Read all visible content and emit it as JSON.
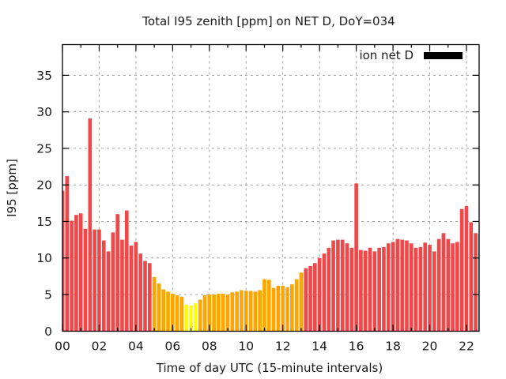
{
  "chart_data": {
    "type": "bar",
    "title": "Total I95 zenith [ppm] on NET D, DoY=034",
    "xlabel": "Time of day UTC (15-minute intervals)",
    "ylabel": "I95 [ppm]",
    "xlim": [
      0,
      22.69
    ],
    "ylim": [
      0,
      39.2
    ],
    "grid": true,
    "x_interval_hours": 0.25,
    "x_ticks": [
      {
        "value": 0,
        "label": "00"
      },
      {
        "value": 2,
        "label": "02"
      },
      {
        "value": 4,
        "label": "04"
      },
      {
        "value": 6,
        "label": "06"
      },
      {
        "value": 8,
        "label": "08"
      },
      {
        "value": 10,
        "label": "10"
      },
      {
        "value": 12,
        "label": "12"
      },
      {
        "value": 14,
        "label": "14"
      },
      {
        "value": 16,
        "label": "16"
      },
      {
        "value": 18,
        "label": "18"
      },
      {
        "value": 20,
        "label": "20"
      },
      {
        "value": 22,
        "label": "22"
      }
    ],
    "y_ticks": [
      {
        "value": 0,
        "label": "0"
      },
      {
        "value": 5,
        "label": "5"
      },
      {
        "value": 10,
        "label": "10"
      },
      {
        "value": 15,
        "label": "15"
      },
      {
        "value": 20,
        "label": "20"
      },
      {
        "value": 25,
        "label": "25"
      },
      {
        "value": 30,
        "label": "30"
      },
      {
        "value": 35,
        "label": "35"
      }
    ],
    "legend": {
      "label": "ion net D",
      "color": "#000000",
      "position": "top-right"
    },
    "color_thresholds": {
      "yellow_below": 4.0,
      "red_at_or_above": 8.5,
      "colors": {
        "yellow": "#ffff00",
        "orange": "#ffa500",
        "red": "#f04848"
      }
    },
    "series": [
      {
        "name": "ion net D",
        "values": [
          19.2,
          21.2,
          15.1,
          15.9,
          16.1,
          14.0,
          29.1,
          13.9,
          13.9,
          12.4,
          10.9,
          13.5,
          16.0,
          12.5,
          16.5,
          11.7,
          12.2,
          10.6,
          9.6,
          9.3,
          7.4,
          6.5,
          5.7,
          5.4,
          5.1,
          4.9,
          4.7,
          3.6,
          3.5,
          3.8,
          4.3,
          4.9,
          5.0,
          5.0,
          5.1,
          5.1,
          5.0,
          5.3,
          5.4,
          5.6,
          5.5,
          5.5,
          5.4,
          5.6,
          7.1,
          7.0,
          5.9,
          6.2,
          6.2,
          6.0,
          6.4,
          7.1,
          8.0,
          8.6,
          8.9,
          9.3,
          10.0,
          10.6,
          11.4,
          12.4,
          12.5,
          12.5,
          12.0,
          11.4,
          20.2,
          11.1,
          11.0,
          11.4,
          10.9,
          11.4,
          11.5,
          12.0,
          12.2,
          12.6,
          12.5,
          12.4,
          12.0,
          11.4,
          11.5,
          12.1,
          11.8,
          10.9,
          12.6,
          13.4,
          12.6,
          12.0,
          12.2,
          16.7,
          17.1,
          14.9,
          13.4,
          13.3
        ]
      }
    ]
  }
}
